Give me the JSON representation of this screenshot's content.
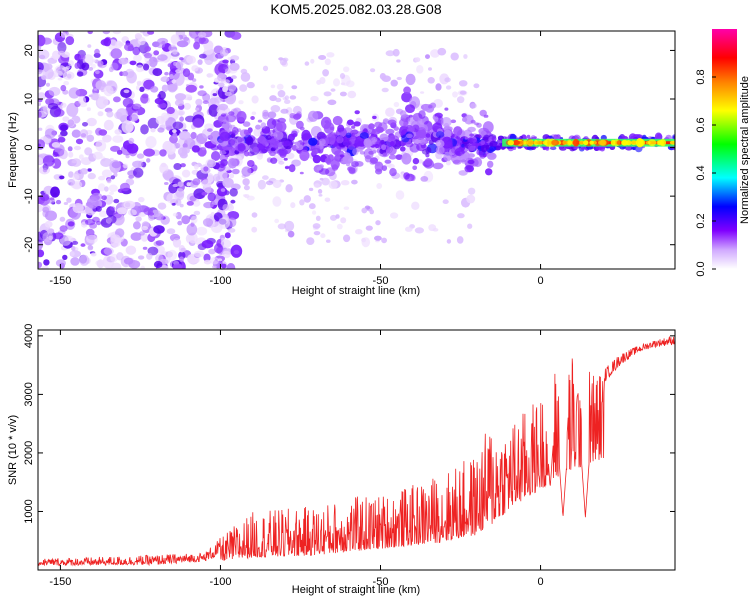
{
  "title": "KOM5.2025.082.03.28.G08",
  "chart_data": [
    {
      "type": "heatmap",
      "xlabel": "Height of straight line (km)",
      "ylabel": "Frequency (Hz)",
      "xlim": [
        -157,
        42
      ],
      "ylim": [
        -25,
        24
      ],
      "x_ticks": [
        -150,
        -100,
        -50,
        0
      ],
      "x_tick_labels": [
        "-150",
        "-100",
        "-50",
        "0"
      ],
      "y_ticks": [
        -20,
        -10,
        0,
        10,
        20
      ],
      "y_tick_labels": [
        "-20",
        "-10",
        "0",
        "10",
        "20"
      ],
      "colorbar": {
        "label": "Normalized spectral amplitude",
        "range": [
          0,
          1
        ],
        "ticks": [
          0.0,
          0.2,
          0.4,
          0.6,
          0.8
        ],
        "tick_labels": [
          "0.0",
          "0.2",
          "0.4",
          "0.6",
          "0.8"
        ],
        "colors": [
          "#ffffff",
          "#c080ff",
          "#8000ff",
          "#0000ff",
          "#00ffff",
          "#00ff00",
          "#ffff00",
          "#ff8000",
          "#ff0000",
          "#ff00ff"
        ]
      },
      "regions": [
        {
          "x": [
            -157,
            -100
          ],
          "f_center": 0,
          "f_spread": 25,
          "amplitude": 0.15,
          "description_level": "noise"
        },
        {
          "x": [
            -100,
            -20
          ],
          "f_center": 1,
          "f_spread": 7,
          "amplitude": 0.25
        },
        {
          "x": [
            -20,
            42
          ],
          "f_center": 1,
          "f_spread": 1,
          "amplitude": 0.9
        }
      ]
    },
    {
      "type": "line",
      "xlabel": "Height of straight line (km)",
      "ylabel": "SNR (10 * v/v)",
      "xlim": [
        -157,
        42
      ],
      "ylim": [
        0,
        4100
      ],
      "x_ticks": [
        -150,
        -100,
        -50,
        0
      ],
      "x_tick_labels": [
        "-150",
        "-100",
        "-50",
        "0"
      ],
      "y_ticks": [
        1000,
        2000,
        3000,
        4000
      ],
      "y_tick_labels": [
        "1000",
        "2000",
        "3000",
        "4000"
      ],
      "line_color": "#ee2222",
      "envelope": {
        "x": [
          -157,
          -140,
          -120,
          -105,
          -100,
          -95,
          -90,
          -80,
          -70,
          -60,
          -50,
          -40,
          -30,
          -20,
          -15,
          -10,
          -5,
          0,
          5,
          10,
          15,
          20,
          25,
          30,
          35,
          42
        ],
        "base": [
          80,
          80,
          90,
          150,
          250,
          300,
          350,
          380,
          420,
          520,
          600,
          700,
          800,
          1000,
          1300,
          1700,
          2000,
          2300,
          2600,
          2800,
          3000,
          3200,
          3500,
          3700,
          3800,
          3850
        ],
        "peak": [
          200,
          220,
          260,
          300,
          550,
          800,
          1000,
          1050,
          1100,
          1250,
          1300,
          1450,
          1700,
          2000,
          2650,
          2500,
          2750,
          3000,
          3600,
          3750,
          3500,
          3500,
          3750,
          3850,
          3950,
          4050
        ]
      },
      "dips": [
        {
          "x": 3,
          "min": 1400
        },
        {
          "x": 7,
          "min": 900
        },
        {
          "x": 14,
          "min": 900
        }
      ]
    }
  ]
}
